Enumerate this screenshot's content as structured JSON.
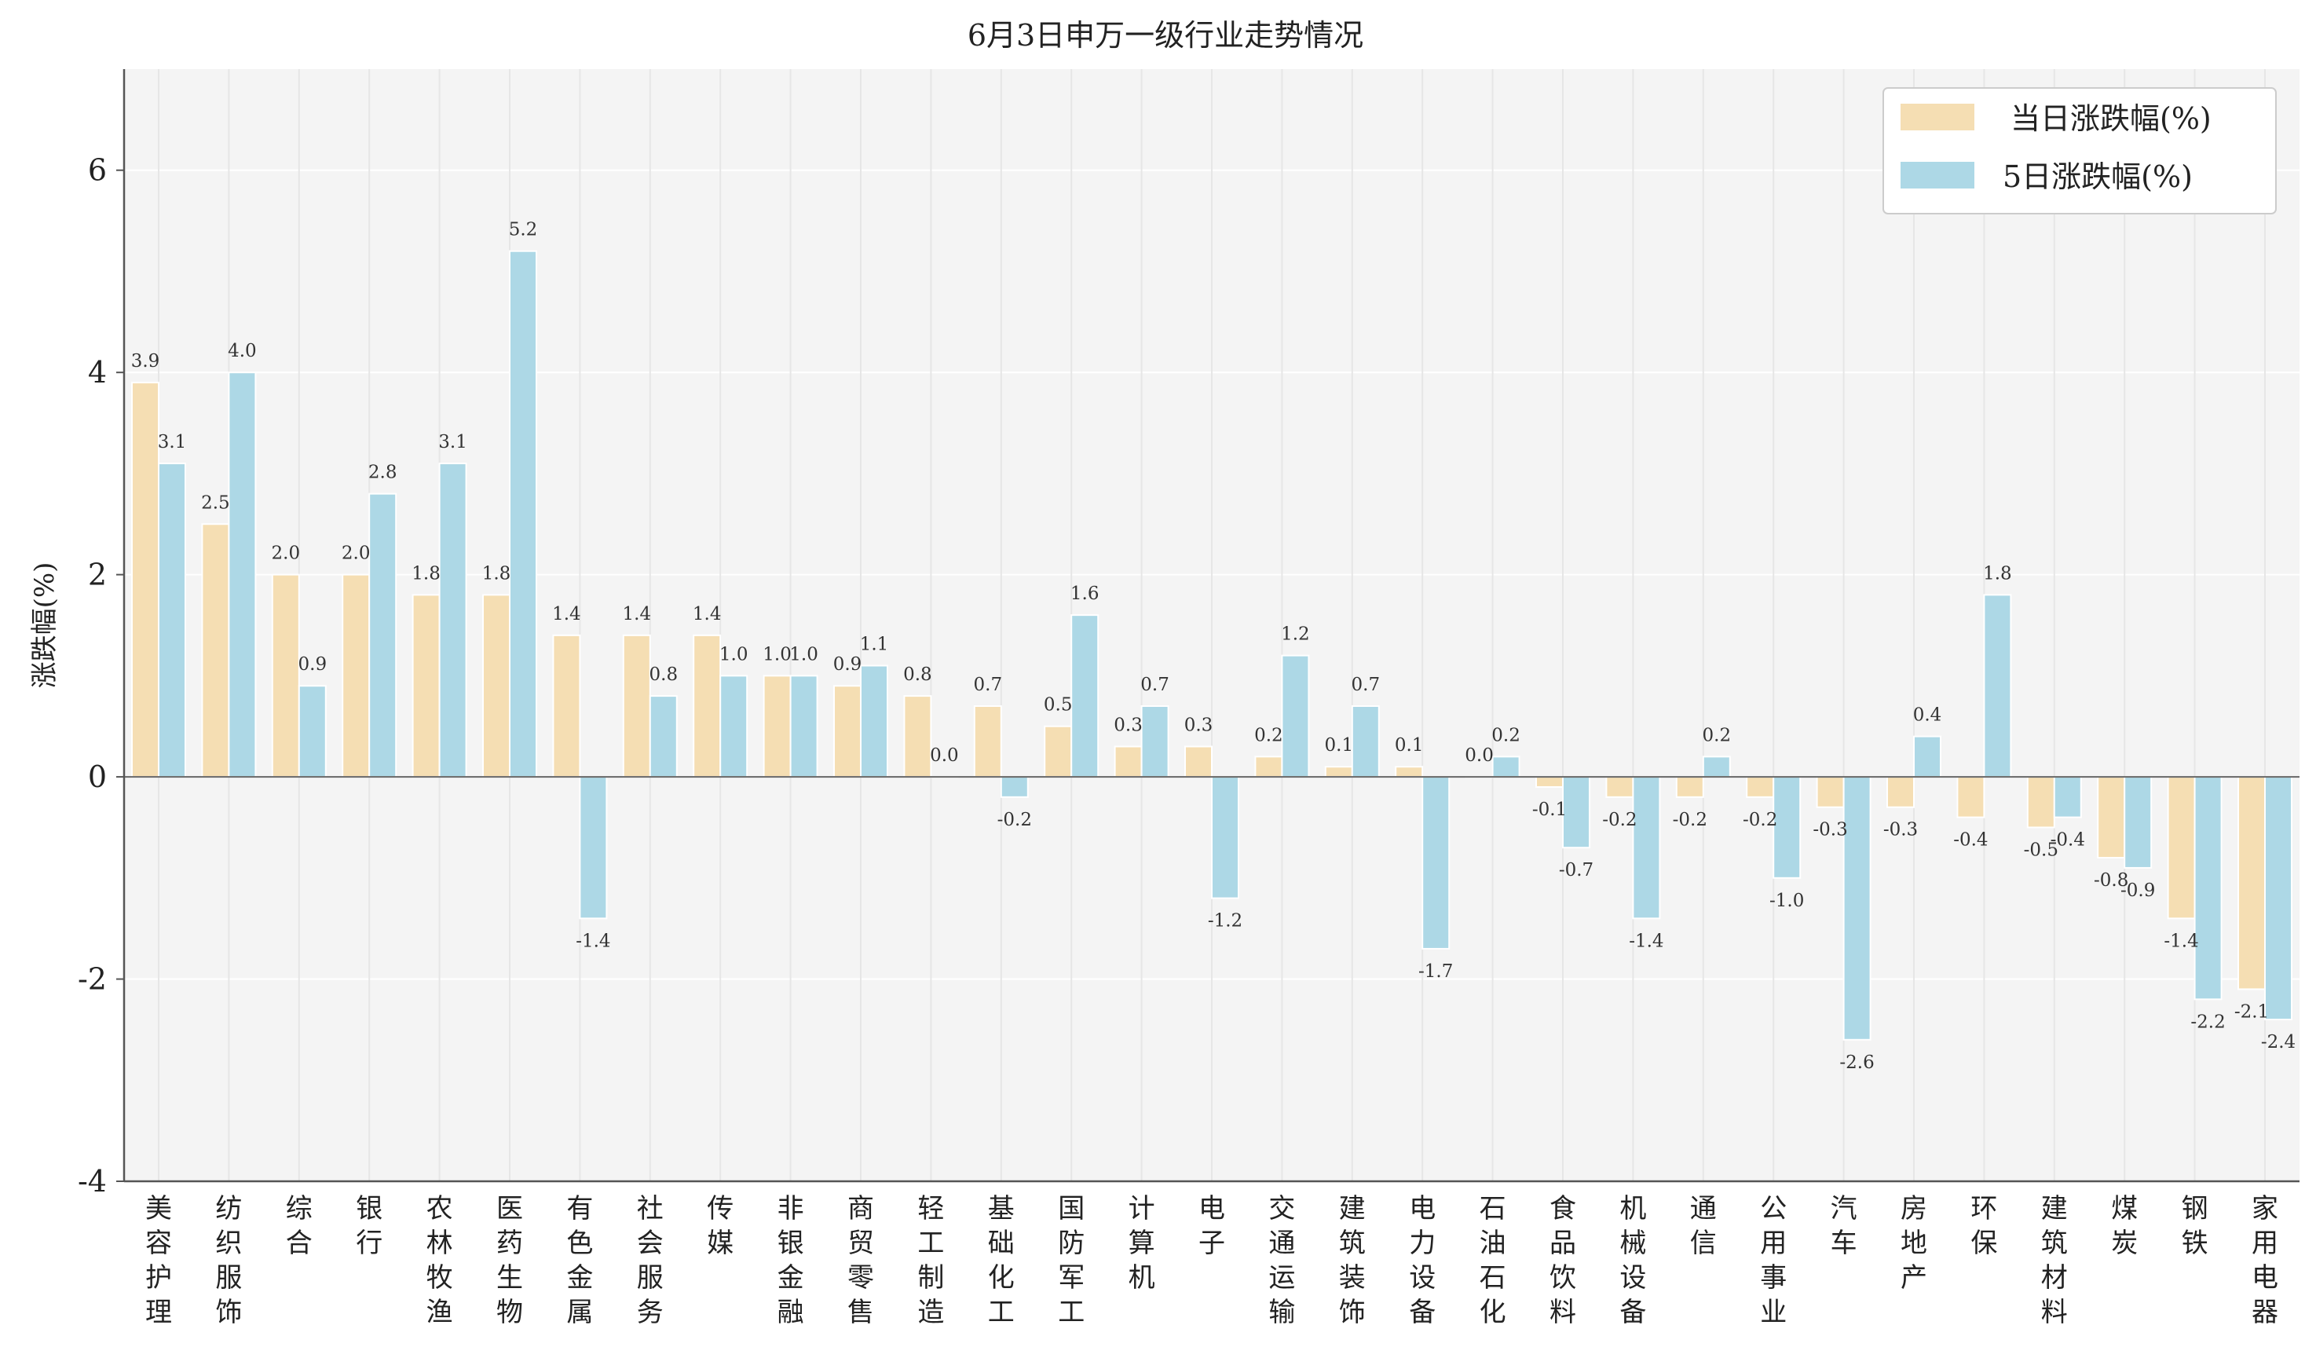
{
  "chart_data": {
    "type": "bar",
    "title": "6月3日申万一级行业走势情况",
    "xlabel": "",
    "ylabel": "涨跌幅(%)",
    "ylim": [
      -4,
      7
    ],
    "yticks": [
      -4,
      -2,
      0,
      2,
      4,
      6
    ],
    "ytick_labels": [
      "-4",
      "-2",
      "0",
      "2",
      "4",
      "6"
    ],
    "grid": true,
    "legend_position": "top-right",
    "categories": [
      "美容护理",
      "纺织服饰",
      "综合",
      "银行",
      "农林牧渔",
      "医药生物",
      "有色金属",
      "社会服务",
      "传媒",
      "非银金融",
      "商贸零售",
      "轻工制造",
      "基础化工",
      "国防军工",
      "计算机",
      "电子",
      "交通运输",
      "建筑装饰",
      "电力设备",
      "石油石化",
      "食品饮料",
      "机械设备",
      "通信",
      "公用事业",
      "汽车",
      "房地产",
      "环保",
      "建筑材料",
      "煤炭",
      "钢铁",
      "家用电器"
    ],
    "series": [
      {
        "name": "当日涨跌幅(%)",
        "color": "#f5deb3",
        "values": [
          3.9,
          2.5,
          2.0,
          2.0,
          1.8,
          1.8,
          1.4,
          1.4,
          1.4,
          1.0,
          0.9,
          0.8,
          0.7,
          0.5,
          0.3,
          0.3,
          0.2,
          0.1,
          0.1,
          0.0,
          -0.1,
          -0.2,
          -0.2,
          -0.2,
          -0.3,
          -0.3,
          -0.4,
          -0.5,
          -0.8,
          -1.4,
          -2.1
        ],
        "labels": [
          "3.9",
          "2.5",
          "2.0",
          "2.0",
          "1.8",
          "1.8",
          "1.4",
          "1.4",
          "1.4",
          "1.0",
          "0.9",
          "0.8",
          "0.7",
          "0.5",
          "0.3",
          "0.3",
          "0.2",
          "0.1",
          "0.1",
          "0.0",
          "-0.1",
          "-0.2",
          "-0.2",
          "-0.2",
          "-0.3",
          "-0.3",
          "-0.4",
          "-0.5",
          "-0.8",
          "-1.4",
          "-2.1"
        ]
      },
      {
        "name": "5日涨跌幅(%)",
        "color": "#add8e6",
        "values": [
          3.1,
          4.0,
          0.9,
          2.8,
          3.1,
          5.2,
          -1.4,
          0.8,
          1.0,
          1.0,
          1.1,
          0.0,
          -0.2,
          1.6,
          0.7,
          -1.2,
          1.2,
          0.7,
          -1.7,
          0.2,
          -0.7,
          -1.4,
          0.2,
          -1.0,
          -2.6,
          0.4,
          1.8,
          -0.4,
          -0.9,
          -2.2,
          -2.4
        ],
        "labels": [
          "3.1",
          "4.0",
          "0.9",
          "2.8",
          "3.1",
          "5.2",
          "-1.4",
          "0.8",
          "1.0",
          "1.0",
          "1.1",
          "0.0",
          "-0.2",
          "1.6",
          "0.7",
          "-1.2",
          "1.2",
          "0.7",
          "-1.7",
          "0.2",
          "-0.7",
          "-1.4",
          "0.2",
          "-1.0",
          "-2.6",
          "0.4",
          "1.8",
          "-0.4",
          "-0.9",
          "-2.2",
          "-2.4"
        ]
      }
    ]
  }
}
